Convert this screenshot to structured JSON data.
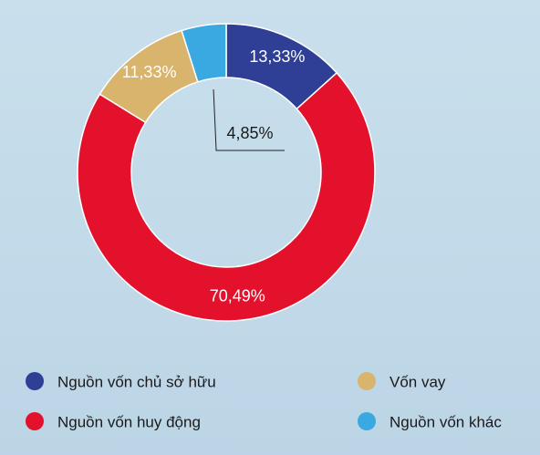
{
  "chart_data": {
    "type": "donut",
    "categories": [
      "Nguồn vốn chủ sở hữu",
      "Nguồn vốn huy động",
      "Vốn vay",
      "Nguồn vốn khác"
    ],
    "values": [
      13.33,
      70.49,
      11.33,
      4.85
    ],
    "value_labels": [
      "13,33%",
      "70,49%",
      "11,33%",
      "4,85%"
    ],
    "colors": [
      "#2f3f95",
      "#e3112b",
      "#d8b46c",
      "#3ba9e1"
    ],
    "legend": "bottom"
  }
}
